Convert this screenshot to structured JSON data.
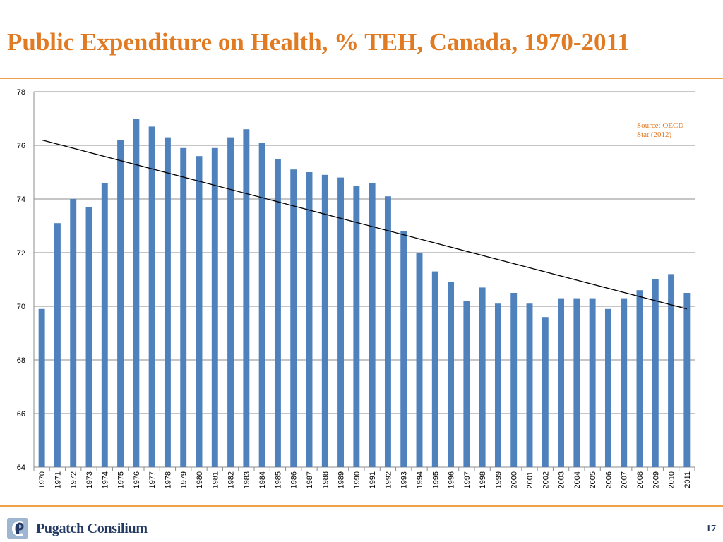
{
  "slide": {
    "title": "Public Expenditure on Health, % TEH, Canada, 1970-2011",
    "page_number": "17",
    "source_note": "Source: OECD Stat (2012)",
    "logo_text": "Pugatch Consilium",
    "title_color": "#e07a23",
    "rule_color": "#f0a24a",
    "logo_icon": "pc-logo-icon"
  },
  "chart_data": {
    "type": "bar",
    "title": "",
    "xlabel": "",
    "ylabel": "",
    "categories": [
      "1970",
      "1971",
      "1972",
      "1973",
      "1974",
      "1975",
      "1976",
      "1977",
      "1978",
      "1979",
      "1980",
      "1981",
      "1982",
      "1983",
      "1984",
      "1985",
      "1986",
      "1987",
      "1988",
      "1989",
      "1990",
      "1991",
      "1992",
      "1993",
      "1994",
      "1995",
      "1996",
      "1997",
      "1998",
      "1999",
      "2000",
      "2001",
      "2002",
      "2003",
      "2004",
      "2005",
      "2006",
      "2007",
      "2008",
      "2009",
      "2010",
      "2011"
    ],
    "series": [
      {
        "values": [
          69.9,
          73.1,
          74.0,
          73.7,
          74.6,
          76.2,
          77.0,
          76.7,
          76.3,
          75.9,
          75.6,
          75.9,
          76.3,
          76.6,
          76.1,
          75.5,
          75.1,
          75.0,
          74.9,
          74.8,
          74.5,
          74.6,
          74.1,
          72.8,
          72.0,
          71.3,
          70.9,
          70.2,
          70.7,
          70.1,
          70.5,
          70.1,
          69.6,
          70.3,
          70.3,
          70.3,
          69.9,
          70.3,
          70.6,
          71.0,
          71.2,
          70.5
        ],
        "color": "#4f81bd"
      }
    ],
    "ylim": [
      64,
      78
    ],
    "yticks": [
      64,
      66,
      68,
      70,
      72,
      74,
      76,
      78
    ],
    "grid": true,
    "trendline": {
      "type": "linear",
      "start": 76.2,
      "end": 69.9,
      "color": "#000000"
    }
  }
}
